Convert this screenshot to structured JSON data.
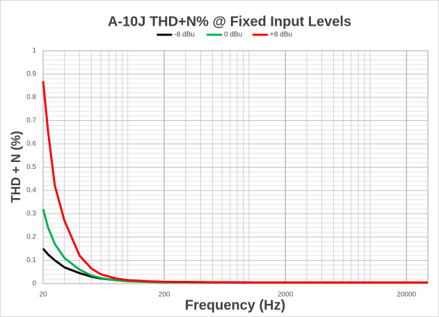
{
  "chart_data": {
    "type": "line",
    "title": "A-10J THD+N% @ Fixed Input Levels",
    "x_label": "Frequency (Hz)",
    "y_label": "THD + N (%)",
    "x": [
      20,
      22,
      25,
      30,
      40,
      50,
      60,
      80,
      100,
      150,
      200,
      500,
      1000,
      5000,
      20000,
      30000
    ],
    "series": [
      {
        "name": "-8 dBu",
        "color": "#000000",
        "values": [
          0.15,
          0.125,
          0.1,
          0.07,
          0.045,
          0.03,
          0.022,
          0.015,
          0.011,
          0.008,
          0.007,
          0.006,
          0.005,
          0.005,
          0.005,
          0.005
        ]
      },
      {
        "name": "0 dBu",
        "color": "#00b050",
        "values": [
          0.32,
          0.24,
          0.17,
          0.11,
          0.06,
          0.035,
          0.024,
          0.014,
          0.01,
          0.007,
          0.006,
          0.005,
          0.005,
          0.005,
          0.005,
          0.005
        ]
      },
      {
        "name": "+8 dBu",
        "color": "#ff0000",
        "values": [
          0.87,
          0.65,
          0.42,
          0.27,
          0.12,
          0.065,
          0.04,
          0.022,
          0.015,
          0.01,
          0.008,
          0.006,
          0.005,
          0.005,
          0.005,
          0.005
        ]
      }
    ],
    "xlim": [
      20,
      30000
    ],
    "xticks": [
      20,
      200,
      2000,
      20000
    ],
    "x_log": true,
    "ylim": [
      0,
      1
    ],
    "yticks": [
      0,
      0.1,
      0.2,
      0.3,
      0.4,
      0.5,
      0.6,
      0.7,
      0.8,
      0.9,
      1
    ],
    "grid": true,
    "minor_grid": true,
    "legend": "top"
  }
}
